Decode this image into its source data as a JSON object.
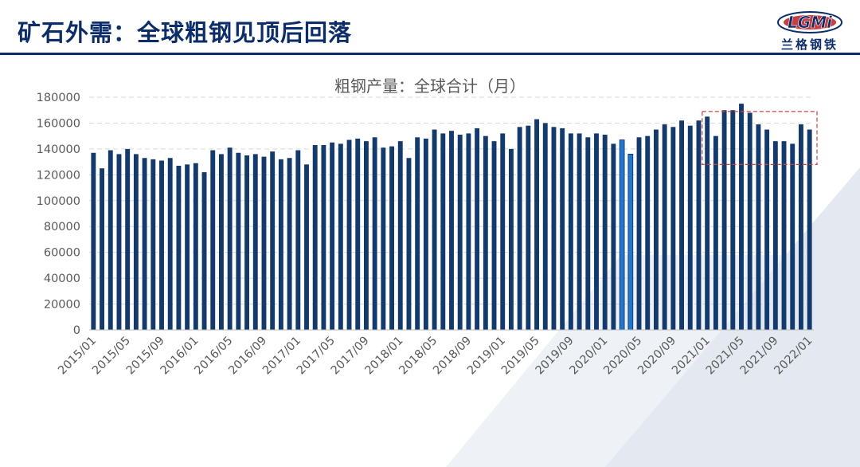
{
  "page": {
    "title": "矿石外需：全球粗钢见顶后回落",
    "logo": {
      "text": "LGMi",
      "subtitle": "兰格钢铁"
    }
  },
  "colors": {
    "title": "#0b2d6b",
    "bar": "#123a6e",
    "bar_highlight": "#1f77d0",
    "highlight_box": "#d04040",
    "grid": "#d9d9d9",
    "text": "#595959"
  },
  "chart_data": {
    "type": "bar",
    "title": "粗钢产量：全球合计（月）",
    "xlabel": "",
    "ylabel": "",
    "ylim": [
      0,
      180000
    ],
    "yticks": [
      0,
      20000,
      40000,
      60000,
      80000,
      100000,
      120000,
      140000,
      160000,
      180000
    ],
    "grid": true,
    "legend": "none",
    "categories": [
      "2015/01",
      "2015/02",
      "2015/03",
      "2015/04",
      "2015/05",
      "2015/06",
      "2015/07",
      "2015/08",
      "2015/09",
      "2015/10",
      "2015/11",
      "2015/12",
      "2016/01",
      "2016/02",
      "2016/03",
      "2016/04",
      "2016/05",
      "2016/06",
      "2016/07",
      "2016/08",
      "2016/09",
      "2016/10",
      "2016/11",
      "2016/12",
      "2017/01",
      "2017/02",
      "2017/03",
      "2017/04",
      "2017/05",
      "2017/06",
      "2017/07",
      "2017/08",
      "2017/09",
      "2017/10",
      "2017/11",
      "2017/12",
      "2018/01",
      "2018/02",
      "2018/03",
      "2018/04",
      "2018/05",
      "2018/06",
      "2018/07",
      "2018/08",
      "2018/09",
      "2018/10",
      "2018/11",
      "2018/12",
      "2019/01",
      "2019/02",
      "2019/03",
      "2019/04",
      "2019/05",
      "2019/06",
      "2019/07",
      "2019/08",
      "2019/09",
      "2019/10",
      "2019/11",
      "2019/12",
      "2020/01",
      "2020/02",
      "2020/03",
      "2020/04",
      "2020/05",
      "2020/06",
      "2020/07",
      "2020/08",
      "2020/09",
      "2020/10",
      "2020/11",
      "2020/12",
      "2021/01",
      "2021/02",
      "2021/03",
      "2021/04",
      "2021/05",
      "2021/06",
      "2021/07",
      "2021/08",
      "2021/09",
      "2021/10",
      "2021/11",
      "2021/12",
      "2022/01"
    ],
    "xticklabels": [
      "2015/01",
      "2015/05",
      "2015/09",
      "2016/01",
      "2016/05",
      "2016/09",
      "2017/01",
      "2017/05",
      "2017/09",
      "2018/01",
      "2018/05",
      "2018/09",
      "2019/01",
      "2019/05",
      "2019/09",
      "2020/01",
      "2020/05",
      "2020/09",
      "2021/01",
      "2021/05",
      "2021/09",
      "2022/01"
    ],
    "values": [
      137000,
      125000,
      139000,
      136000,
      140000,
      136000,
      133000,
      132000,
      131000,
      133000,
      127000,
      128000,
      129000,
      122000,
      139000,
      136000,
      141000,
      137000,
      135000,
      136000,
      134000,
      138000,
      132000,
      133000,
      139000,
      128000,
      143000,
      143000,
      145000,
      144000,
      147000,
      148000,
      146000,
      149000,
      141000,
      142000,
      146000,
      133000,
      149000,
      148000,
      155000,
      152000,
      154000,
      151000,
      152000,
      156000,
      150000,
      146000,
      152000,
      140000,
      157000,
      158000,
      163000,
      160000,
      157000,
      156000,
      152000,
      152000,
      149000,
      152000,
      151000,
      144000,
      147000,
      136000,
      149000,
      150000,
      155000,
      159000,
      157000,
      162000,
      158000,
      162000,
      165000,
      150000,
      170000,
      170000,
      175000,
      168000,
      159000,
      155000,
      146000,
      146000,
      144000,
      159000,
      155000
    ],
    "highlighted_bars": [
      "2020/03",
      "2020/04"
    ],
    "annotation": {
      "type": "dashed-box",
      "from": "2021/01",
      "to": "2022/01",
      "y_range": [
        128000,
        169000
      ]
    }
  }
}
